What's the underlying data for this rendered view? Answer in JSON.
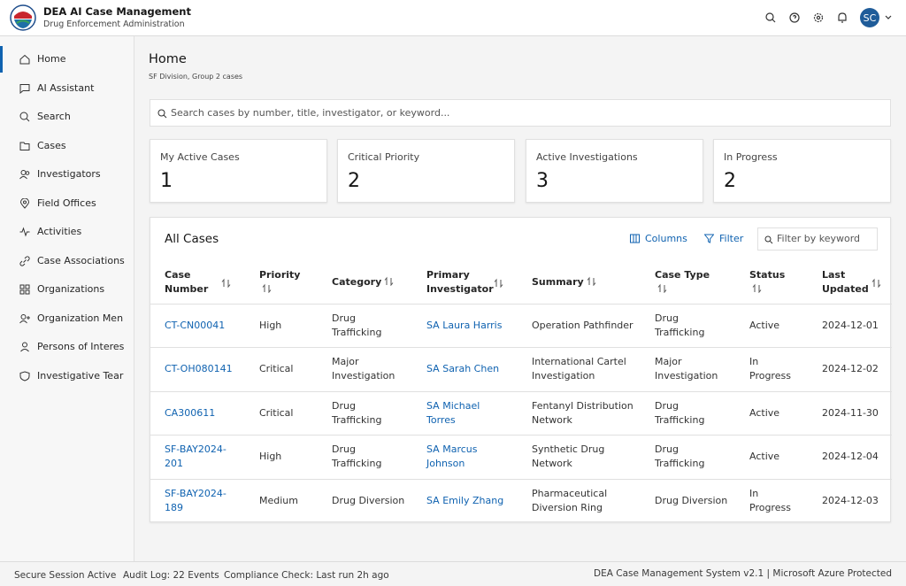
{
  "header": {
    "title": "DEA AI Case Management",
    "subtitle": "Drug Enforcement Administration",
    "avatar": "SC"
  },
  "nav": [
    "Home",
    "AI Assistant",
    "Search",
    "Cases",
    "Investigators",
    "Field Offices",
    "Activities",
    "Case Associations",
    "Organizations",
    "Organization Men",
    "Persons of Interes",
    "Investigative Tear"
  ],
  "page": {
    "title": "Home",
    "subtitle": "SF Division, Group 2 cases",
    "search_placeholder": "Search cases by number, title, investigator, or keyword..."
  },
  "stats": [
    {
      "label": "My Active Cases",
      "value": 1
    },
    {
      "label": "Critical Priority",
      "value": 2
    },
    {
      "label": "Active Investigations",
      "value": 3
    },
    {
      "label": "In Progress",
      "value": 2
    }
  ],
  "table": {
    "title": "All Cases",
    "columns_button": "Columns",
    "filter_button": "Filter",
    "filter_placeholder": "Filter by keyword",
    "headers": [
      "Case Number",
      "Priority",
      "Category",
      "Primary Investigator",
      "Summary",
      "Case Type",
      "Status",
      "Last Updated"
    ],
    "rows": [
      [
        "CT-CN00041",
        "High",
        "Drug Trafficking",
        "SA Laura Harris",
        "Operation Pathfinder",
        "Drug Trafficking",
        "Active",
        "2024-12-01"
      ],
      [
        "CT-OH080141",
        "Critical",
        "Major Investigation",
        "SA Sarah Chen",
        "International Cartel Investigation",
        "Major Investigation",
        "In Progress",
        "2024-12-02"
      ],
      [
        "CA300611",
        "Critical",
        "Drug Trafficking",
        "SA Michael Torres",
        "Fentanyl Distribution Network",
        "Drug Trafficking",
        "Active",
        "2024-11-30"
      ],
      [
        "SF-BAY2024-201",
        "High",
        "Drug Trafficking",
        "SA Marcus Johnson",
        "Synthetic Drug Network",
        "Drug Trafficking",
        "Active",
        "2024-12-04"
      ],
      [
        "SF-BAY2024-189",
        "Medium",
        "Drug Diversion",
        "SA Emily Zhang",
        "Pharmaceutical Diversion Ring",
        "Drug Diversion",
        "In Progress",
        "2024-12-03"
      ]
    ]
  },
  "footer": {
    "session": "Secure Session Active",
    "audit": "Audit Log: 22 Events",
    "compliance": "Compliance Check: Last run 2h ago",
    "system": "DEA Case Management System v2.1 | Microsoft Azure Protected"
  }
}
